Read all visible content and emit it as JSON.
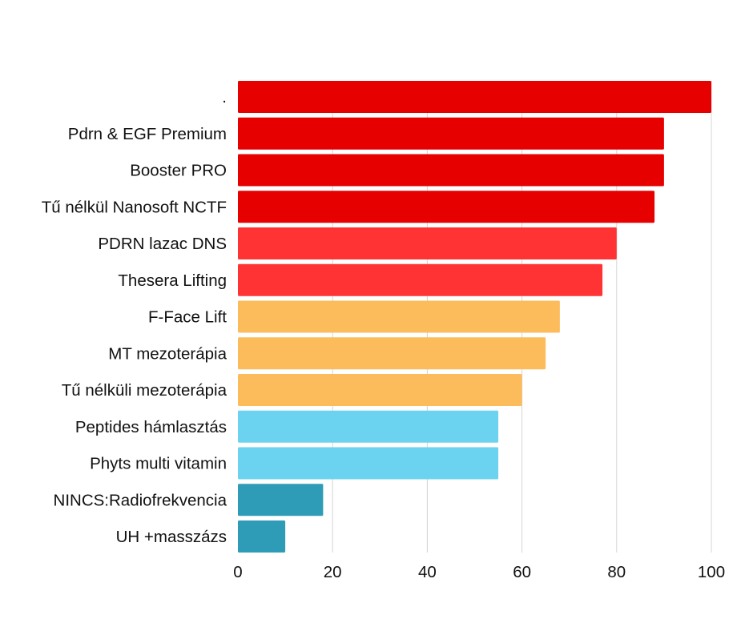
{
  "chart_data": {
    "type": "bar",
    "orientation": "horizontal",
    "title": "",
    "xlabel": "",
    "ylabel": "",
    "xlim": [
      0,
      100
    ],
    "xticks": [
      0,
      20,
      40,
      60,
      80,
      100
    ],
    "grid": true,
    "legend": "none",
    "categories": [
      ".",
      "Pdrn & EGF Premium",
      "Booster PRO",
      "Tű nélkül Nanosoft NCTF",
      "PDRN lazac DNS",
      "Thesera Lifting",
      "F-Face Lift",
      "MT mezoterápia",
      "Tű nélküli mezoterápia",
      "Peptides hámlasztás",
      "Phyts multi vitamin",
      "NINCS:Radiofrekvencia",
      "UH +masszázs"
    ],
    "values": [
      100,
      90,
      90,
      88,
      80,
      77,
      68,
      65,
      60,
      55,
      55,
      18,
      10
    ],
    "colors": [
      "#e60000",
      "#e60000",
      "#e60000",
      "#e60000",
      "#ff3333",
      "#ff3333",
      "#fdbc5c",
      "#fdbc5c",
      "#fdbc5c",
      "#6bd3ef",
      "#6bd3ef",
      "#2e9cb7",
      "#2e9cb7"
    ]
  }
}
